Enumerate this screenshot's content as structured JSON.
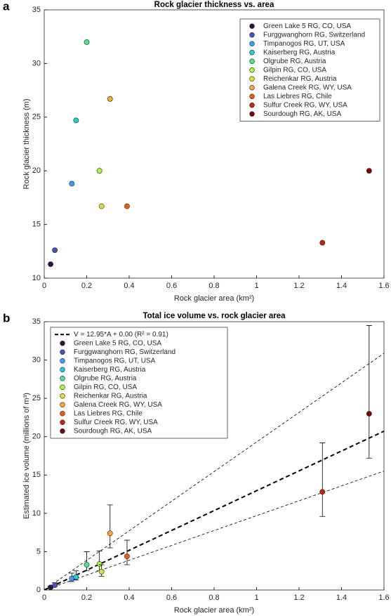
{
  "chart_data": [
    {
      "type": "scatter",
      "panel": "a",
      "title": "Rock glacier thickness vs. area",
      "x_label": "Rock glacier area (km²)",
      "y_label": "Rock glacier thickness (m)",
      "xlim": [
        0,
        1.6
      ],
      "xticks": [
        0,
        0.2,
        0.4,
        0.6,
        0.8,
        1,
        1.2,
        1.4,
        1.6
      ],
      "ylim": [
        10,
        35
      ],
      "yticks": [
        10,
        15,
        20,
        25,
        30,
        35
      ],
      "legend": "top-right",
      "series": [
        {
          "name": "Green Lake 5 RG, CO, USA",
          "color": "#30123b",
          "x": [
            0.03
          ],
          "values": [
            11.3
          ]
        },
        {
          "name": "Furggwanghorn RG, Switzerland",
          "color": "#4454c4",
          "x": [
            0.05
          ],
          "values": [
            12.6
          ]
        },
        {
          "name": "Timpanogos RG, UT, USA",
          "color": "#3ba0fd",
          "x": [
            0.13
          ],
          "values": [
            18.8
          ]
        },
        {
          "name": "Kaiserberg RG, Austria",
          "color": "#1fcfd5",
          "x": [
            0.15
          ],
          "values": [
            24.7
          ]
        },
        {
          "name": "Olgrube RG, Austria",
          "color": "#46e891",
          "x": [
            0.2
          ],
          "values": [
            32.0
          ]
        },
        {
          "name": "Gilpin RG, CO, USA",
          "color": "#a4fc3b",
          "x": [
            0.26
          ],
          "values": [
            20.0
          ]
        },
        {
          "name": "Reichenkar RG, Austria",
          "color": "#e1dd37",
          "x": [
            0.27
          ],
          "values": [
            16.7
          ]
        },
        {
          "name": "Galena Creek RG, WY, USA",
          "color": "#fca636",
          "x": [
            0.31
          ],
          "values": [
            26.7
          ]
        },
        {
          "name": "Las Liebres RG, Chile",
          "color": "#ef5a11",
          "x": [
            0.39
          ],
          "values": [
            16.7
          ]
        },
        {
          "name": "Sulfur Creek RG, WY, USA",
          "color": "#c42503",
          "x": [
            1.31
          ],
          "values": [
            13.3
          ]
        },
        {
          "name": "Sourdough RG, AK, USA",
          "color": "#7a0403",
          "x": [
            1.53
          ],
          "values": [
            20.0
          ]
        }
      ]
    },
    {
      "type": "scatter",
      "panel": "b",
      "title": "Total ice volume vs. rock glacier area",
      "x_label": "Rock glacier area (km²)",
      "y_label": "Estimated ice volume (millions of m³)",
      "xlim": [
        0,
        1.6
      ],
      "xticks": [
        0,
        0.2,
        0.4,
        0.6,
        0.8,
        1,
        1.2,
        1.4,
        1.6
      ],
      "ylim": [
        0,
        35
      ],
      "yticks": [
        0,
        5,
        10,
        15,
        20,
        25,
        30,
        35
      ],
      "legend": "top-left",
      "fit": {
        "name": "V = 12.95*A + 0.00  (R² = 0.91)",
        "slope": 12.95,
        "intercept": 0.0
      },
      "bound_slopes": [
        19.3,
        9.7
      ],
      "series": [
        {
          "name": "Green Lake 5 RG, CO, USA",
          "color": "#30123b",
          "x": [
            0.03
          ],
          "values": [
            0.34
          ],
          "lower": [
            0.25
          ],
          "upper": [
            0.5
          ]
        },
        {
          "name": "Furggwanghorn RG, Switzerland",
          "color": "#4454c4",
          "x": [
            0.05
          ],
          "values": [
            0.63
          ],
          "lower": [
            0.47
          ],
          "upper": [
            0.95
          ]
        },
        {
          "name": "Timpanogos RG, UT, USA",
          "color": "#3ba0fd",
          "x": [
            0.13
          ],
          "values": [
            1.5
          ],
          "lower": [
            1.1
          ],
          "upper": [
            2.2
          ]
        },
        {
          "name": "Kaiserberg RG, Austria",
          "color": "#1fcfd5",
          "x": [
            0.15
          ],
          "values": [
            1.7
          ],
          "lower": [
            1.3
          ],
          "upper": [
            2.5
          ]
        },
        {
          "name": "Olgrube RG, Austria",
          "color": "#46e891",
          "x": [
            0.2
          ],
          "values": [
            3.3
          ],
          "lower": [
            2.5
          ],
          "upper": [
            5.0
          ]
        },
        {
          "name": "Gilpin RG, CO, USA",
          "color": "#a4fc3b",
          "x": [
            0.26
          ],
          "values": [
            3.4
          ],
          "lower": [
            2.5
          ],
          "upper": [
            5.1
          ]
        },
        {
          "name": "Reichenkar RG, Austria",
          "color": "#e1dd37",
          "x": [
            0.27
          ],
          "values": [
            2.4
          ],
          "lower": [
            1.8
          ],
          "upper": [
            3.3
          ]
        },
        {
          "name": "Galena Creek RG, WY, USA",
          "color": "#fca636",
          "x": [
            0.31
          ],
          "values": [
            7.4
          ],
          "lower": [
            5.5
          ],
          "upper": [
            11.1
          ]
        },
        {
          "name": "Las Liebres RG, Chile",
          "color": "#ef5a11",
          "x": [
            0.39
          ],
          "values": [
            4.4
          ],
          "lower": [
            3.3
          ],
          "upper": [
            6.5
          ]
        },
        {
          "name": "Sulfur Creek RG, WY, USA",
          "color": "#c42503",
          "x": [
            1.31
          ],
          "values": [
            12.8
          ],
          "lower": [
            9.6
          ],
          "upper": [
            19.2
          ]
        },
        {
          "name": "Sourdough RG, AK, USA",
          "color": "#7a0403",
          "x": [
            1.53
          ],
          "values": [
            23.0
          ],
          "lower": [
            17.2
          ],
          "upper": [
            34.5
          ]
        }
      ]
    }
  ]
}
